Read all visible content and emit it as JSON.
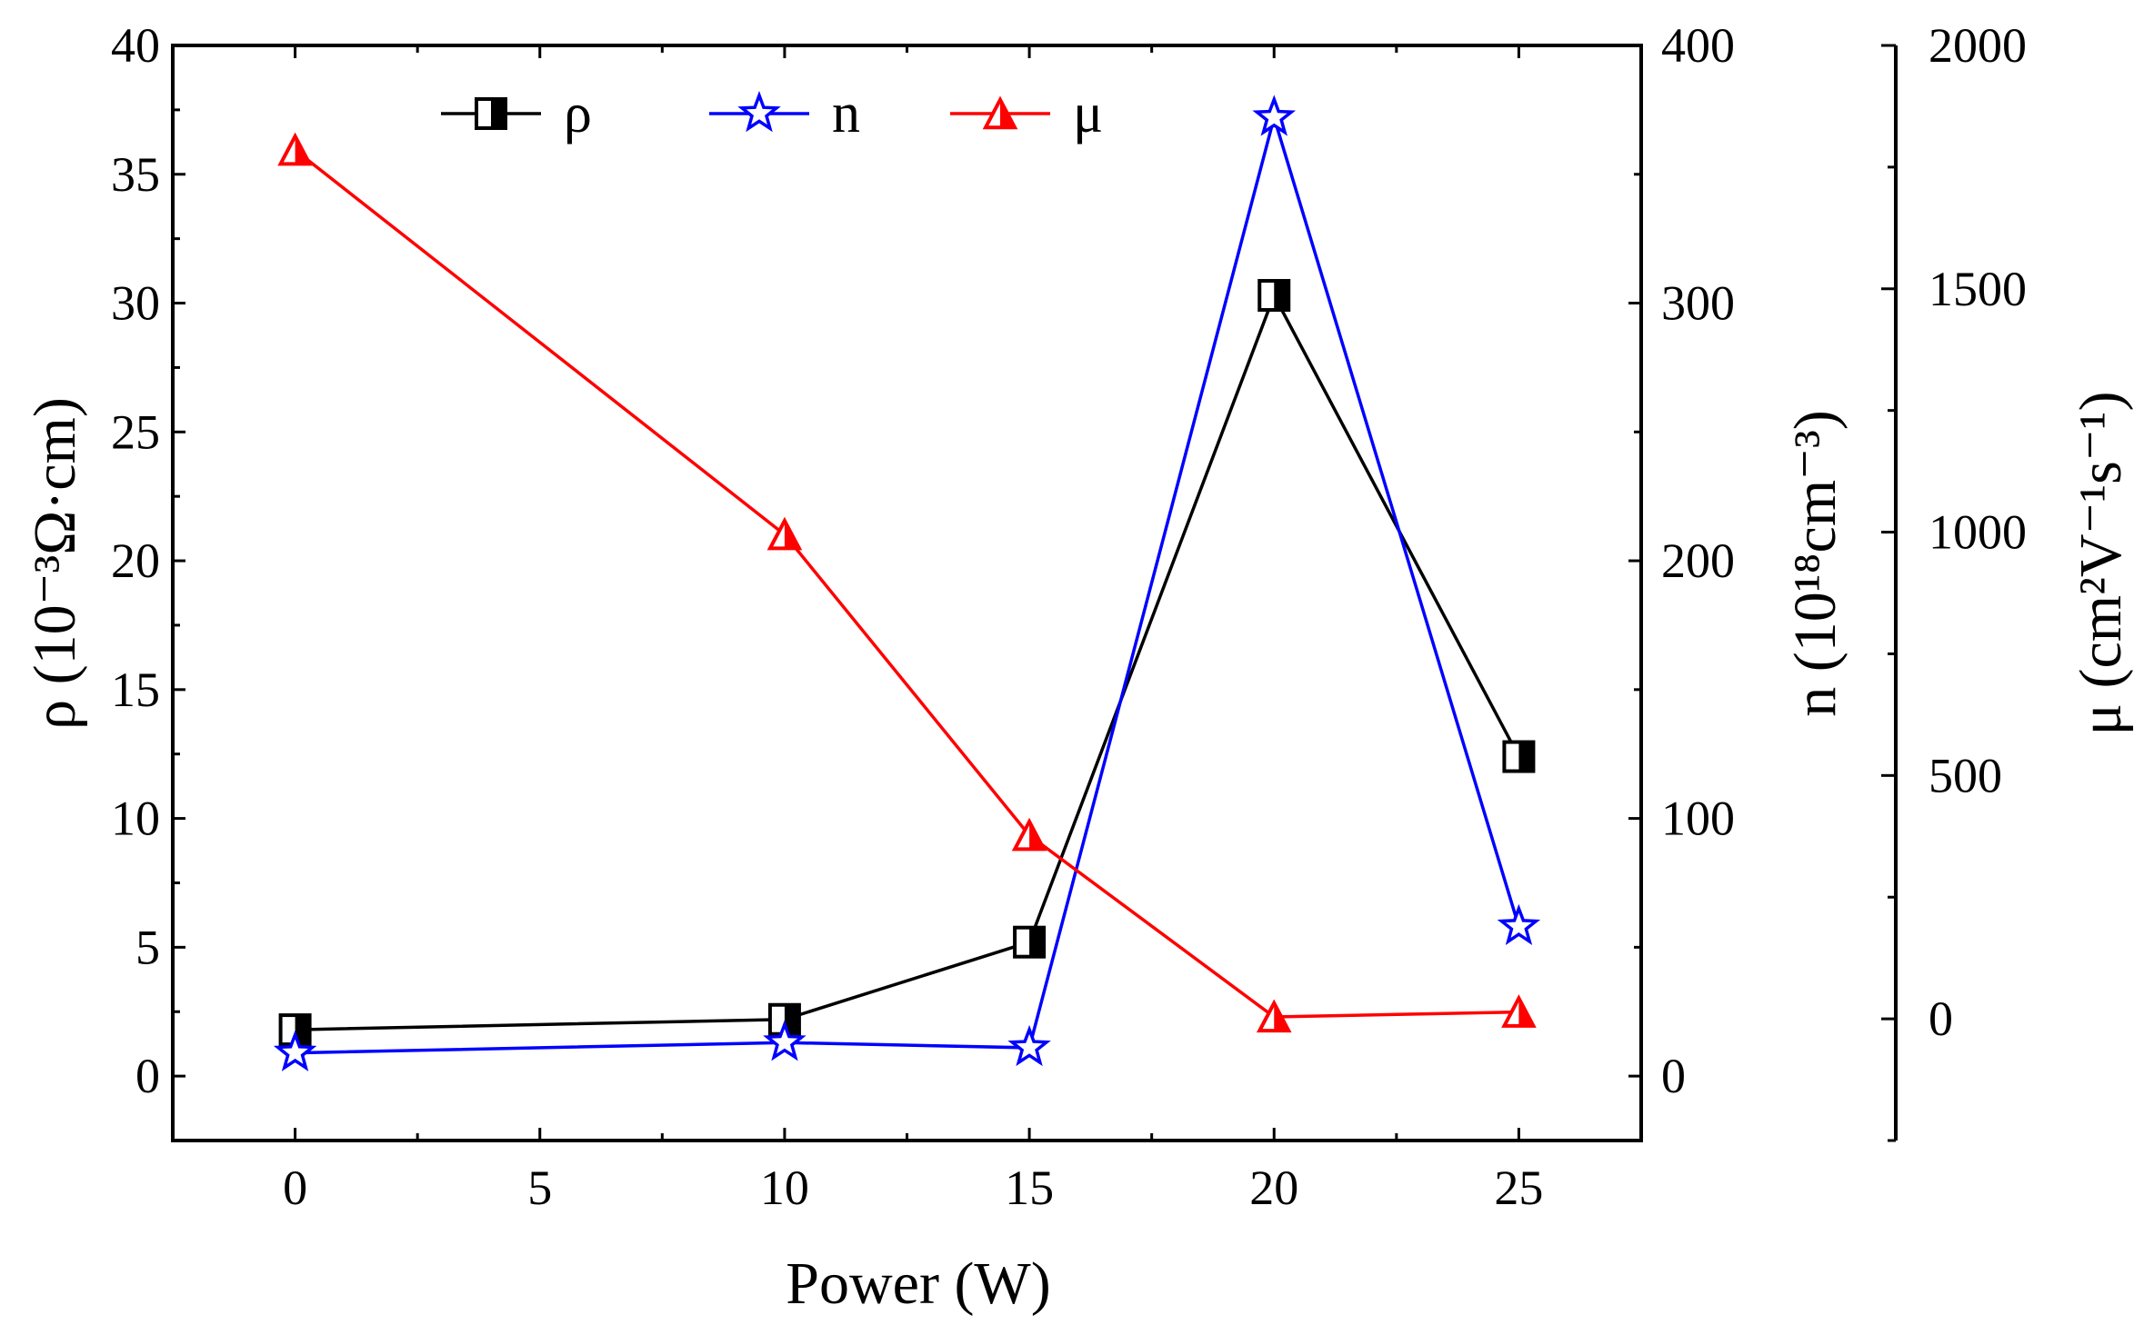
{
  "chart_data": {
    "type": "line",
    "x": [
      0,
      10,
      15,
      20,
      25
    ],
    "xlabel": "Power (W)",
    "xlim": [
      -2.5,
      27.5
    ],
    "xticks": [
      "0",
      "5",
      "10",
      "15",
      "20",
      "25"
    ],
    "axes": {
      "left": {
        "label": "ρ (10⁻³Ω·cm)",
        "ylim": [
          -2.5,
          40
        ],
        "ticks": [
          "0",
          "5",
          "10",
          "15",
          "20",
          "25",
          "30",
          "35",
          "40"
        ]
      },
      "right1": {
        "label": "n (10¹⁸cm⁻³)",
        "ylim": [
          -25,
          400
        ],
        "ticks": [
          "0",
          "100",
          "200",
          "300",
          "400"
        ]
      },
      "right2": {
        "label": "μ (cm²V⁻¹s⁻¹)",
        "ylim": [
          -250,
          2000
        ],
        "ticks": [
          "0",
          "500",
          "1000",
          "1500",
          "2000"
        ]
      }
    },
    "series": [
      {
        "name": "ρ",
        "axis": "left",
        "color": "#000000",
        "marker": "half-filled-square",
        "values": [
          1.8,
          2.2,
          5.2,
          30.3,
          12.4
        ]
      },
      {
        "name": "n",
        "axis": "right1",
        "color": "#0000ff",
        "marker": "open-star",
        "values": [
          9,
          13,
          11,
          372,
          58
        ]
      },
      {
        "name": "μ",
        "axis": "right2",
        "color": "#ff0000",
        "marker": "half-filled-triangle",
        "values": [
          1785,
          995,
          377,
          4,
          14
        ]
      }
    ],
    "legend": {
      "position": "top-center",
      "entries": [
        "ρ",
        "n",
        "μ"
      ]
    }
  }
}
